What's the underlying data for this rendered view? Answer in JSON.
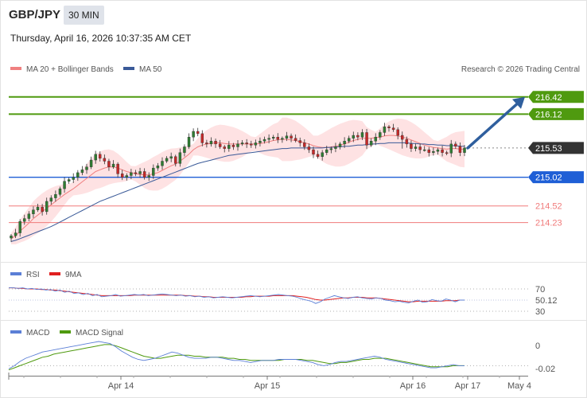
{
  "header": {
    "pair": "GBP/JPY",
    "timeframe": "30 MIN",
    "datetime": "Thursday, April 16, 2026 10:37:35 AM CET"
  },
  "legend": {
    "ma20_bb": "MA 20 + Bollinger Bands",
    "ma50": "MA 50",
    "credit": "Research © 2026 Trading Central"
  },
  "colors": {
    "candle_up": "#2e7d32",
    "candle_down": "#c62828",
    "bb_fill": "#fdd8da",
    "ma20": "#f08080",
    "ma50": "#3a5a98",
    "resistance": "#4f9a0f",
    "support": "#1f5fd6",
    "level_red": "#f07a7a",
    "arrow": "#2f5f9e"
  },
  "chart_data": [
    {
      "type": "candlestick",
      "pane": "price",
      "x": [
        "Apr 14",
        "Apr 15",
        "Apr 16",
        "Apr 17",
        "May 4"
      ],
      "ylim": [
        213.6,
        216.75
      ],
      "current_price": 215.53,
      "levels": [
        {
          "value": 216.42,
          "label": "216.42",
          "kind": "resistance"
        },
        {
          "value": 216.12,
          "label": "216.12",
          "kind": "resistance"
        },
        {
          "value": 215.53,
          "label": "215.53",
          "kind": "pivot"
        },
        {
          "value": 215.02,
          "label": "215.02",
          "kind": "support"
        },
        {
          "value": 214.52,
          "label": "214.52",
          "kind": "support"
        },
        {
          "value": 214.23,
          "label": "214.23",
          "kind": "support"
        }
      ],
      "candles_close": [
        214.0,
        214.05,
        214.25,
        214.3,
        214.38,
        214.45,
        214.5,
        214.42,
        214.6,
        214.66,
        214.72,
        214.82,
        214.95,
        214.98,
        215.02,
        215.1,
        215.15,
        215.2,
        215.32,
        215.42,
        215.35,
        215.3,
        215.2,
        215.25,
        215.08,
        215.02,
        215.05,
        215.1,
        215.08,
        215.12,
        215.02,
        215.05,
        215.18,
        215.22,
        215.3,
        215.35,
        215.38,
        215.26,
        215.45,
        215.55,
        215.72,
        215.82,
        215.78,
        215.62,
        215.6,
        215.65,
        215.6,
        215.55,
        215.52,
        215.58,
        215.55,
        215.6,
        215.62,
        215.6,
        215.58,
        215.62,
        215.65,
        215.68,
        215.7,
        215.72,
        215.68,
        215.7,
        215.74,
        215.7,
        215.66,
        215.62,
        215.55,
        215.5,
        215.42,
        215.38,
        215.45,
        215.5,
        215.52,
        215.55,
        215.6,
        215.65,
        215.7,
        215.75,
        215.72,
        215.8,
        215.58,
        215.65,
        215.72,
        215.8,
        215.9,
        215.88,
        215.85,
        215.75,
        215.68,
        215.6,
        215.52,
        215.55,
        215.5,
        215.5,
        215.45,
        215.47,
        215.5,
        215.45,
        215.44,
        215.6,
        215.56,
        215.45,
        215.53
      ],
      "ma20": [
        213.95,
        214.0,
        214.08,
        214.15,
        214.22,
        214.3,
        214.36,
        214.42,
        214.48,
        214.54,
        214.6,
        214.66,
        214.72,
        214.77,
        214.82,
        214.88,
        214.94,
        215.0,
        215.06,
        215.12,
        215.15,
        215.18,
        215.2,
        215.2,
        215.18,
        215.15,
        215.12,
        215.1,
        215.08,
        215.07,
        215.06,
        215.06,
        215.08,
        215.1,
        215.14,
        215.18,
        215.22,
        215.25,
        215.3,
        215.36,
        215.42,
        215.5,
        215.55,
        215.58,
        215.6,
        215.61,
        215.62,
        215.62,
        215.61,
        215.6,
        215.6,
        215.6,
        215.6,
        215.6,
        215.6,
        215.6,
        215.61,
        215.62,
        215.64,
        215.66,
        215.67,
        215.68,
        215.68,
        215.67,
        215.66,
        215.64,
        215.62,
        215.6,
        215.57,
        215.55,
        215.54,
        215.54,
        215.55,
        215.56,
        215.58,
        215.6,
        215.63,
        215.66,
        215.68,
        215.7,
        215.7,
        215.7,
        215.71,
        215.72,
        215.74,
        215.75,
        215.75,
        215.74,
        215.72,
        215.7,
        215.67,
        215.64,
        215.61,
        215.58,
        215.56,
        215.54,
        215.53,
        215.52,
        215.51,
        215.52,
        215.52,
        215.51,
        215.51
      ],
      "ma50": [
        213.9,
        213.92,
        213.95,
        213.98,
        214.01,
        214.04,
        214.07,
        214.1,
        214.13,
        214.16,
        214.2,
        214.24,
        214.28,
        214.32,
        214.36,
        214.4,
        214.44,
        214.48,
        214.52,
        214.56,
        214.6,
        214.63,
        214.66,
        214.69,
        214.72,
        214.75,
        214.78,
        214.81,
        214.84,
        214.87,
        214.9,
        214.93,
        214.96,
        214.99,
        215.02,
        215.05,
        215.08,
        215.11,
        215.14,
        215.17,
        215.2,
        215.23,
        215.26,
        215.28,
        215.3,
        215.32,
        215.34,
        215.36,
        215.38,
        215.4,
        215.41,
        215.42,
        215.43,
        215.44,
        215.45,
        215.46,
        215.47,
        215.48,
        215.49,
        215.5,
        215.51,
        215.52,
        215.52,
        215.53,
        215.53,
        215.53,
        215.53,
        215.53,
        215.53,
        215.53,
        215.53,
        215.54,
        215.54,
        215.55,
        215.55,
        215.56,
        215.56,
        215.57,
        215.58,
        215.58,
        215.59,
        215.6,
        215.6,
        215.61,
        215.61,
        215.62,
        215.62,
        215.62,
        215.62,
        215.62,
        215.61,
        215.61,
        215.6,
        215.6,
        215.59,
        215.59,
        215.58,
        215.58,
        215.57,
        215.57,
        215.57,
        215.56,
        215.56
      ]
    },
    {
      "type": "line",
      "pane": "rsi",
      "series_labels": [
        "RSI",
        "9MA"
      ],
      "levels": [
        {
          "value": 70,
          "label": "70"
        },
        {
          "value": 30,
          "label": "30"
        }
      ],
      "current_value": 50.12,
      "current_label": "50.12",
      "ylim": [
        20,
        80
      ],
      "rsi": [
        72,
        72,
        71,
        72,
        70,
        71,
        69,
        70,
        68,
        69,
        66,
        68,
        64,
        66,
        62,
        63,
        60,
        62,
        58,
        60,
        56,
        57,
        58,
        60,
        57,
        58,
        59,
        60,
        59,
        60,
        58,
        59,
        60,
        61,
        60,
        59,
        58,
        59,
        57,
        58,
        56,
        57,
        55,
        56,
        54,
        55,
        56,
        55,
        54,
        55,
        56,
        57,
        58,
        57,
        56,
        57,
        58,
        59,
        60,
        59,
        58,
        57,
        55,
        52,
        50,
        48,
        44,
        47,
        52,
        55,
        58,
        56,
        54,
        53,
        55,
        56,
        54,
        53,
        52,
        54,
        53,
        50,
        49,
        47,
        48,
        46,
        45,
        48,
        50,
        46,
        47,
        51,
        49,
        48,
        52,
        50,
        47,
        50,
        50
      ],
      "ma9": [
        72,
        72,
        71,
        71,
        70,
        70,
        70,
        69,
        69,
        68,
        68,
        67,
        66,
        65,
        64,
        63,
        62,
        61,
        60,
        59,
        58,
        58,
        58,
        58,
        58,
        58,
        58,
        59,
        59,
        59,
        59,
        59,
        59,
        59,
        59,
        59,
        59,
        59,
        58,
        58,
        57,
        57,
        56,
        56,
        55,
        55,
        55,
        55,
        55,
        55,
        55,
        56,
        56,
        57,
        57,
        57,
        57,
        58,
        58,
        58,
        58,
        58,
        57,
        56,
        55,
        53,
        51,
        50,
        50,
        51,
        52,
        53,
        54,
        54,
        55,
        55,
        55,
        54,
        54,
        54,
        53,
        52,
        51,
        50,
        49,
        48,
        47,
        47,
        48,
        48,
        48,
        48,
        48,
        48,
        49,
        49,
        49,
        50,
        50
      ]
    },
    {
      "type": "line",
      "pane": "macd",
      "series_labels": [
        "MACD",
        "MACD Signal"
      ],
      "zero_label": "0",
      "current_value": -0.02,
      "current_label": "-0.02",
      "ylim": [
        -0.1,
        0.24
      ],
      "macd": [
        -0.05,
        -0.02,
        0.02,
        0.05,
        0.07,
        0.09,
        0.11,
        0.12,
        0.13,
        0.14,
        0.15,
        0.16,
        0.17,
        0.18,
        0.19,
        0.2,
        0.21,
        0.2,
        0.19,
        0.16,
        0.12,
        0.09,
        0.06,
        0.04,
        0.03,
        0.04,
        0.05,
        0.07,
        0.09,
        0.11,
        0.1,
        0.08,
        0.06,
        0.05,
        0.05,
        0.05,
        0.06,
        0.06,
        0.05,
        0.04,
        0.03,
        0.03,
        0.02,
        0.01,
        0.02,
        0.03,
        0.03,
        0.03,
        0.04,
        0.04,
        0.04,
        0.04,
        0.03,
        0.02,
        0.01,
        -0.01,
        -0.02,
        -0.01,
        0.01,
        0.02,
        0.02,
        0.03,
        0.04,
        0.05,
        0.06,
        0.07,
        0.06,
        0.04,
        0.03,
        0.02,
        0.01,
        0.0,
        -0.01,
        -0.02,
        -0.03,
        -0.04,
        -0.04,
        -0.03,
        -0.02,
        -0.01,
        -0.02,
        -0.02
      ],
      "signal": [
        -0.06,
        -0.04,
        -0.02,
        0.0,
        0.02,
        0.04,
        0.06,
        0.07,
        0.09,
        0.1,
        0.11,
        0.12,
        0.13,
        0.14,
        0.15,
        0.16,
        0.17,
        0.18,
        0.18,
        0.17,
        0.15,
        0.13,
        0.11,
        0.09,
        0.07,
        0.06,
        0.05,
        0.05,
        0.06,
        0.07,
        0.08,
        0.08,
        0.08,
        0.07,
        0.07,
        0.06,
        0.06,
        0.06,
        0.06,
        0.05,
        0.05,
        0.04,
        0.04,
        0.03,
        0.03,
        0.03,
        0.03,
        0.03,
        0.03,
        0.04,
        0.04,
        0.04,
        0.04,
        0.03,
        0.03,
        0.02,
        0.01,
        0.0,
        0.0,
        0.01,
        0.01,
        0.02,
        0.03,
        0.04,
        0.04,
        0.05,
        0.05,
        0.05,
        0.04,
        0.03,
        0.02,
        0.01,
        0.0,
        -0.01,
        -0.02,
        -0.03,
        -0.03,
        -0.03,
        -0.03,
        -0.02,
        -0.02,
        -0.02
      ]
    }
  ]
}
